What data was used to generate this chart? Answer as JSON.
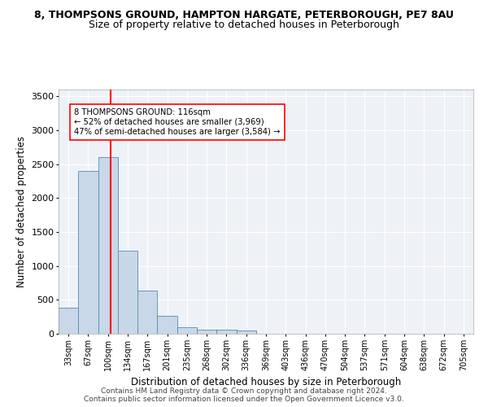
{
  "title_line1": "8, THOMPSONS GROUND, HAMPTON HARGATE, PETERBOROUGH, PE7 8AU",
  "title_line2": "Size of property relative to detached houses in Peterborough",
  "xlabel": "Distribution of detached houses by size in Peterborough",
  "ylabel": "Number of detached properties",
  "footer_line1": "Contains HM Land Registry data © Crown copyright and database right 2024.",
  "footer_line2": "Contains public sector information licensed under the Open Government Licence v3.0.",
  "categories": [
    "33sqm",
    "67sqm",
    "100sqm",
    "134sqm",
    "167sqm",
    "201sqm",
    "235sqm",
    "268sqm",
    "302sqm",
    "336sqm",
    "369sqm",
    "403sqm",
    "436sqm",
    "470sqm",
    "504sqm",
    "537sqm",
    "571sqm",
    "604sqm",
    "638sqm",
    "672sqm",
    "705sqm"
  ],
  "values": [
    390,
    2400,
    2600,
    1230,
    640,
    260,
    100,
    65,
    55,
    50,
    0,
    0,
    0,
    0,
    0,
    0,
    0,
    0,
    0,
    0,
    0
  ],
  "bar_color": "#c8d8e8",
  "bar_edge_color": "#5a8ab0",
  "red_line_x": 2.15,
  "annotation_text": "8 THOMPSONS GROUND: 116sqm\n← 52% of detached houses are smaller (3,969)\n47% of semi-detached houses are larger (3,584) →",
  "ylim": [
    0,
    3600
  ],
  "yticks": [
    0,
    500,
    1000,
    1500,
    2000,
    2500,
    3000,
    3500
  ],
  "bg_color": "#eef2f7",
  "grid_color": "#ffffff",
  "title1_fontsize": 9,
  "title2_fontsize": 9,
  "xlabel_fontsize": 8.5,
  "ylabel_fontsize": 8.5,
  "footer_fontsize": 6.5
}
